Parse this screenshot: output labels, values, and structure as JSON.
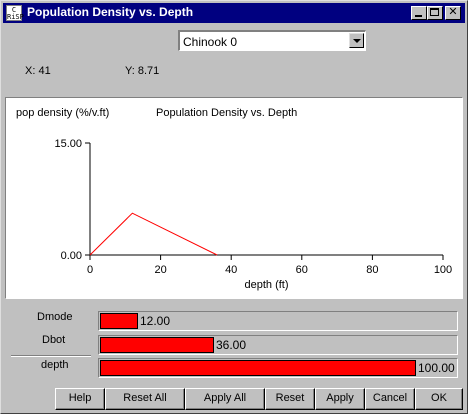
{
  "window": {
    "title": "Population Density vs. Depth",
    "icon_text": "CRiSP",
    "title_color": "#000080"
  },
  "series_select": {
    "value": "Chinook 0"
  },
  "readout": {
    "x": "X: 41",
    "y": "Y: 8.71"
  },
  "chart_data": {
    "type": "line",
    "title": "Population Density vs. Depth",
    "xlabel": "depth (ft)",
    "ylabel": "pop density (%/v.ft)",
    "xlim": [
      0,
      100
    ],
    "ylim": [
      0,
      15
    ],
    "x_ticks": [
      "0",
      "20",
      "40",
      "60",
      "80",
      "100"
    ],
    "y_ticks": [
      "0.00",
      "15.00"
    ],
    "grid": false,
    "series": [
      {
        "color": "#ff0000",
        "x": [
          0,
          12,
          36
        ],
        "y": [
          0,
          5.6,
          0
        ]
      }
    ]
  },
  "params": [
    {
      "label": "Dmode",
      "value": "12.00",
      "fraction": 0.12
    },
    {
      "label": "Dbot",
      "value": "36.00",
      "fraction": 0.36
    },
    {
      "label": "depth",
      "value": "100.00",
      "fraction": 1.0
    }
  ],
  "buttons": {
    "help": "Help",
    "reset_all": "Reset All",
    "apply_all": "Apply All",
    "reset": "Reset",
    "apply": "Apply",
    "cancel": "Cancel",
    "ok": "OK"
  },
  "colors": {
    "bar_fill": "#ff0000",
    "plot_line": "#ff0000"
  }
}
